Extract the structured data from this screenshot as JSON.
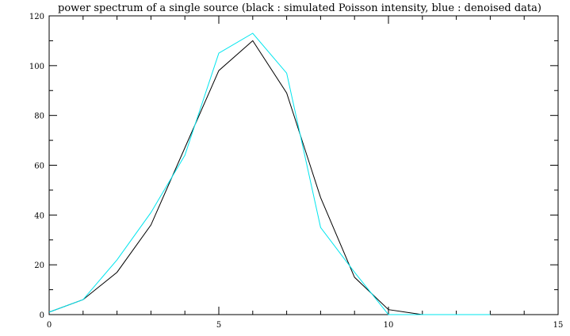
{
  "chart_data": {
    "type": "line",
    "title": "power spectrum of a single source (black : simulated Poisson intensity, blue : denoised data)",
    "xlabel": "",
    "ylabel": "",
    "xlim": [
      0,
      15
    ],
    "ylim": [
      0,
      120
    ],
    "xticks": [
      0,
      5,
      10,
      15
    ],
    "yticks": [
      0,
      20,
      40,
      60,
      80,
      100,
      120
    ],
    "x_minor_step": 1,
    "y_minor_step": 10,
    "grid": false,
    "legend": "none",
    "series": [
      {
        "color": "#000000",
        "x": [
          0,
          1,
          2,
          3,
          4,
          5,
          6,
          7,
          8,
          9,
          10,
          11,
          12,
          13
        ],
        "values": [
          1,
          6,
          17,
          36,
          67,
          98,
          110,
          89,
          47,
          15,
          2,
          0,
          0,
          0
        ]
      },
      {
        "color": "#00e5ee",
        "x": [
          0,
          1,
          2,
          3,
          4,
          5,
          6,
          7,
          8,
          9,
          10,
          11,
          12,
          13
        ],
        "values": [
          1,
          6,
          22,
          41,
          64,
          105,
          113,
          97,
          35,
          17,
          0,
          0,
          0,
          0
        ]
      }
    ]
  }
}
